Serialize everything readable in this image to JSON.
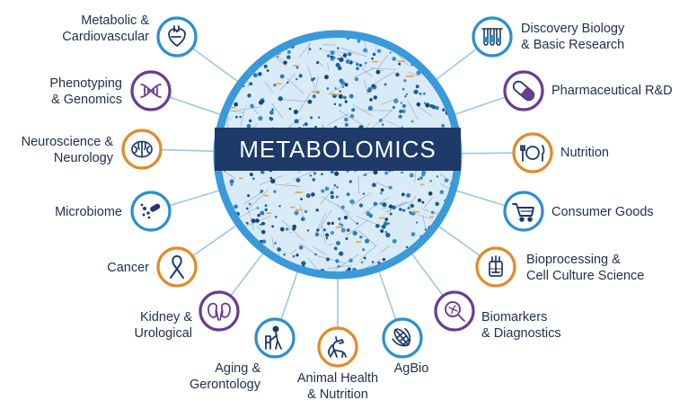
{
  "hub": {
    "title": "METABOLOMICS"
  },
  "colors": {
    "navy": "#1d3a68",
    "blue": "#2b8fd0",
    "orange": "#e08b2a",
    "purple": "#6a3d8f",
    "ring": "#3a99d8",
    "spoke": "#9cc7e6"
  },
  "applications": [
    {
      "key": "metabolic",
      "line1": "Metabolic &",
      "line2": "Cardiovascular",
      "icon": "heart-icon",
      "ring": "#2b8fd0"
    },
    {
      "key": "phenotyping",
      "line1": "Phenotyping",
      "line2": "& Genomics",
      "icon": "dna-icon",
      "ring": "#6a3d8f"
    },
    {
      "key": "neuroscience",
      "line1": "Neuroscience &",
      "line2": "Neurology",
      "icon": "brain-icon",
      "ring": "#e08b2a"
    },
    {
      "key": "microbiome",
      "line1": "Microbiome",
      "line2": "",
      "icon": "microbe-icon",
      "ring": "#2b8fd0"
    },
    {
      "key": "cancer",
      "line1": "Cancer",
      "line2": "",
      "icon": "ribbon-icon",
      "ring": "#e08b2a"
    },
    {
      "key": "kidney",
      "line1": "Kidney &",
      "line2": "Urological",
      "icon": "kidney-icon",
      "ring": "#6a3d8f"
    },
    {
      "key": "aging",
      "line1": "Aging &",
      "line2": "Gerontology",
      "icon": "elderly-icon",
      "ring": "#2b8fd0"
    },
    {
      "key": "animal",
      "line1": "Animal Health",
      "line2": "& Nutrition",
      "icon": "dog-icon",
      "ring": "#e08b2a"
    },
    {
      "key": "agbio",
      "line1": "AgBio",
      "line2": "",
      "icon": "corn-icon",
      "ring": "#2b8fd0"
    },
    {
      "key": "biomarkers",
      "line1": "Biomarkers",
      "line2": "& Diagnostics",
      "icon": "magnifier-icon",
      "ring": "#6a3d8f"
    },
    {
      "key": "bioprocessing",
      "line1": "Bioprocessing &",
      "line2": "Cell Culture Science",
      "icon": "bioreactor-icon",
      "ring": "#e08b2a"
    },
    {
      "key": "consumer",
      "line1": "Consumer Goods",
      "line2": "",
      "icon": "cart-icon",
      "ring": "#2b8fd0"
    },
    {
      "key": "nutrition",
      "line1": "Nutrition",
      "line2": "",
      "icon": "plate-icon",
      "ring": "#e08b2a"
    },
    {
      "key": "pharma",
      "line1": "Pharmaceutical R&D",
      "line2": "",
      "icon": "capsule-icon",
      "ring": "#6a3d8f"
    },
    {
      "key": "discovery",
      "line1": "Discovery Biology",
      "line2": "& Basic Research",
      "icon": "test-tubes-icon",
      "ring": "#2b8fd0"
    }
  ]
}
